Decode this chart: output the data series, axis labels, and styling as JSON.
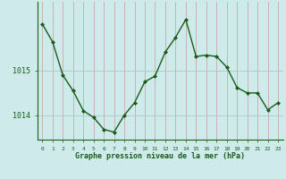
{
  "x": [
    0,
    1,
    2,
    3,
    4,
    5,
    6,
    7,
    8,
    9,
    10,
    11,
    12,
    13,
    14,
    15,
    16,
    17,
    18,
    19,
    20,
    21,
    22,
    23
  ],
  "y": [
    1016.05,
    1015.65,
    1014.9,
    1014.55,
    1014.1,
    1013.95,
    1013.68,
    1013.62,
    1014.0,
    1014.28,
    1014.75,
    1014.88,
    1015.42,
    1015.75,
    1016.15,
    1015.32,
    1015.35,
    1015.32,
    1015.08,
    1014.62,
    1014.5,
    1014.5,
    1014.12,
    1014.28
  ],
  "ylim": [
    1013.45,
    1016.55
  ],
  "yticks": [
    1014,
    1015
  ],
  "xlim": [
    -0.5,
    23.5
  ],
  "xticks": [
    0,
    1,
    2,
    3,
    4,
    5,
    6,
    7,
    8,
    9,
    10,
    11,
    12,
    13,
    14,
    15,
    16,
    17,
    18,
    19,
    20,
    21,
    22,
    23
  ],
  "xlabel": "Graphe pression niveau de la mer (hPa)",
  "line_color": "#1a5c1a",
  "marker_color": "#1a5c1a",
  "bg_color": "#ceeaea",
  "grid_color_v": "#c8a8a8",
  "grid_color_h": "#a8c8c8",
  "axis_color": "#1a5c1a",
  "tick_label_color": "#1a5c1a",
  "xlabel_color": "#1a5c1a",
  "ytick_label_color": "#1a5c1a"
}
